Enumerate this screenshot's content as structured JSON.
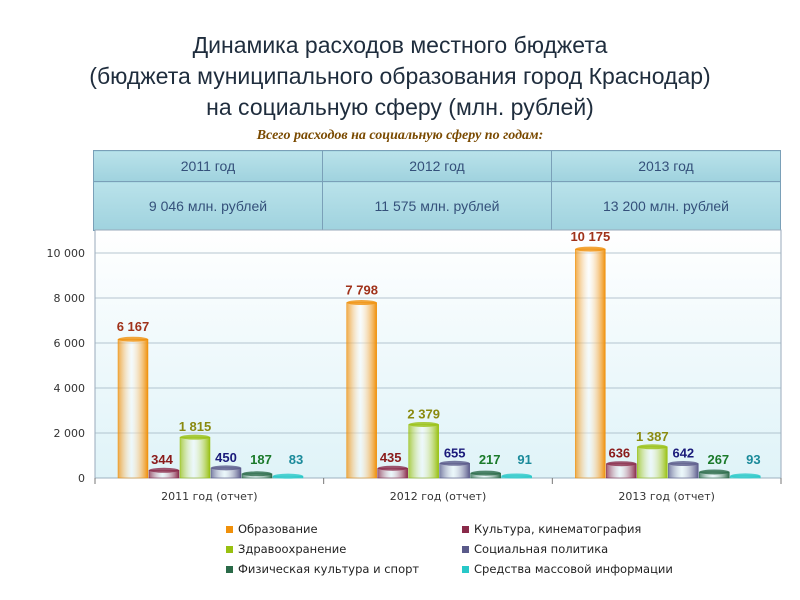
{
  "title": {
    "line1": "Динамика расходов местного бюджета",
    "line2": "(бюджета муниципального образования город Краснодар)",
    "line3": "на социальную сферу (млн. рублей)"
  },
  "subtitle": "Всего расходов на социальную сферу по годам:",
  "summary": {
    "years": [
      "2011 год",
      "2012 год",
      "2013 год"
    ],
    "totals": [
      "9 046 млн. рублей",
      "11 575 млн. рублей",
      "13 200 млн. рублей"
    ]
  },
  "colors": {
    "education": "#f0900a",
    "culture": "#8a2a4a",
    "health": "#98c010",
    "social": "#5a5a8a",
    "sport": "#2a6a48",
    "media": "#28c8c8"
  },
  "chart_data": {
    "type": "bar",
    "categories": [
      "2011 год (отчет)",
      "2012 год (отчет)",
      "2013 год (отчет)"
    ],
    "series": [
      {
        "name": "Образование",
        "values": [
          6167,
          7798,
          10175
        ],
        "labels": [
          "6 167",
          "7 798",
          "10 175"
        ],
        "label_color": "#a0321a"
      },
      {
        "name": "Культура, кинематография",
        "values": [
          344,
          435,
          636
        ],
        "labels": [
          "344",
          "435",
          "636"
        ],
        "label_color": "#8a1a1a"
      },
      {
        "name": "Здравоохранение",
        "values": [
          1815,
          2379,
          1387
        ],
        "labels": [
          "1 815",
          "2 379",
          "1 387"
        ],
        "label_color": "#8a8a10"
      },
      {
        "name": "Социальная политика",
        "values": [
          450,
          655,
          642
        ],
        "labels": [
          "450",
          "655",
          "642"
        ],
        "label_color": "#1a1a7a"
      },
      {
        "name": "Физическая культура и спорт",
        "values": [
          187,
          217,
          267
        ],
        "labels": [
          "187",
          "217",
          "267"
        ],
        "label_color": "#1a7a2a"
      },
      {
        "name": "Средства массовой информации",
        "values": [
          83,
          91,
          93
        ],
        "labels": [
          "83",
          "91",
          "93"
        ],
        "label_color": "#1a8a9a"
      }
    ],
    "yticks": [
      "0",
      "2 000",
      "4 000",
      "6 000",
      "8 000",
      "10 000"
    ],
    "ylim": [
      0,
      10000
    ],
    "grid": true,
    "legend_position": "bottom"
  }
}
